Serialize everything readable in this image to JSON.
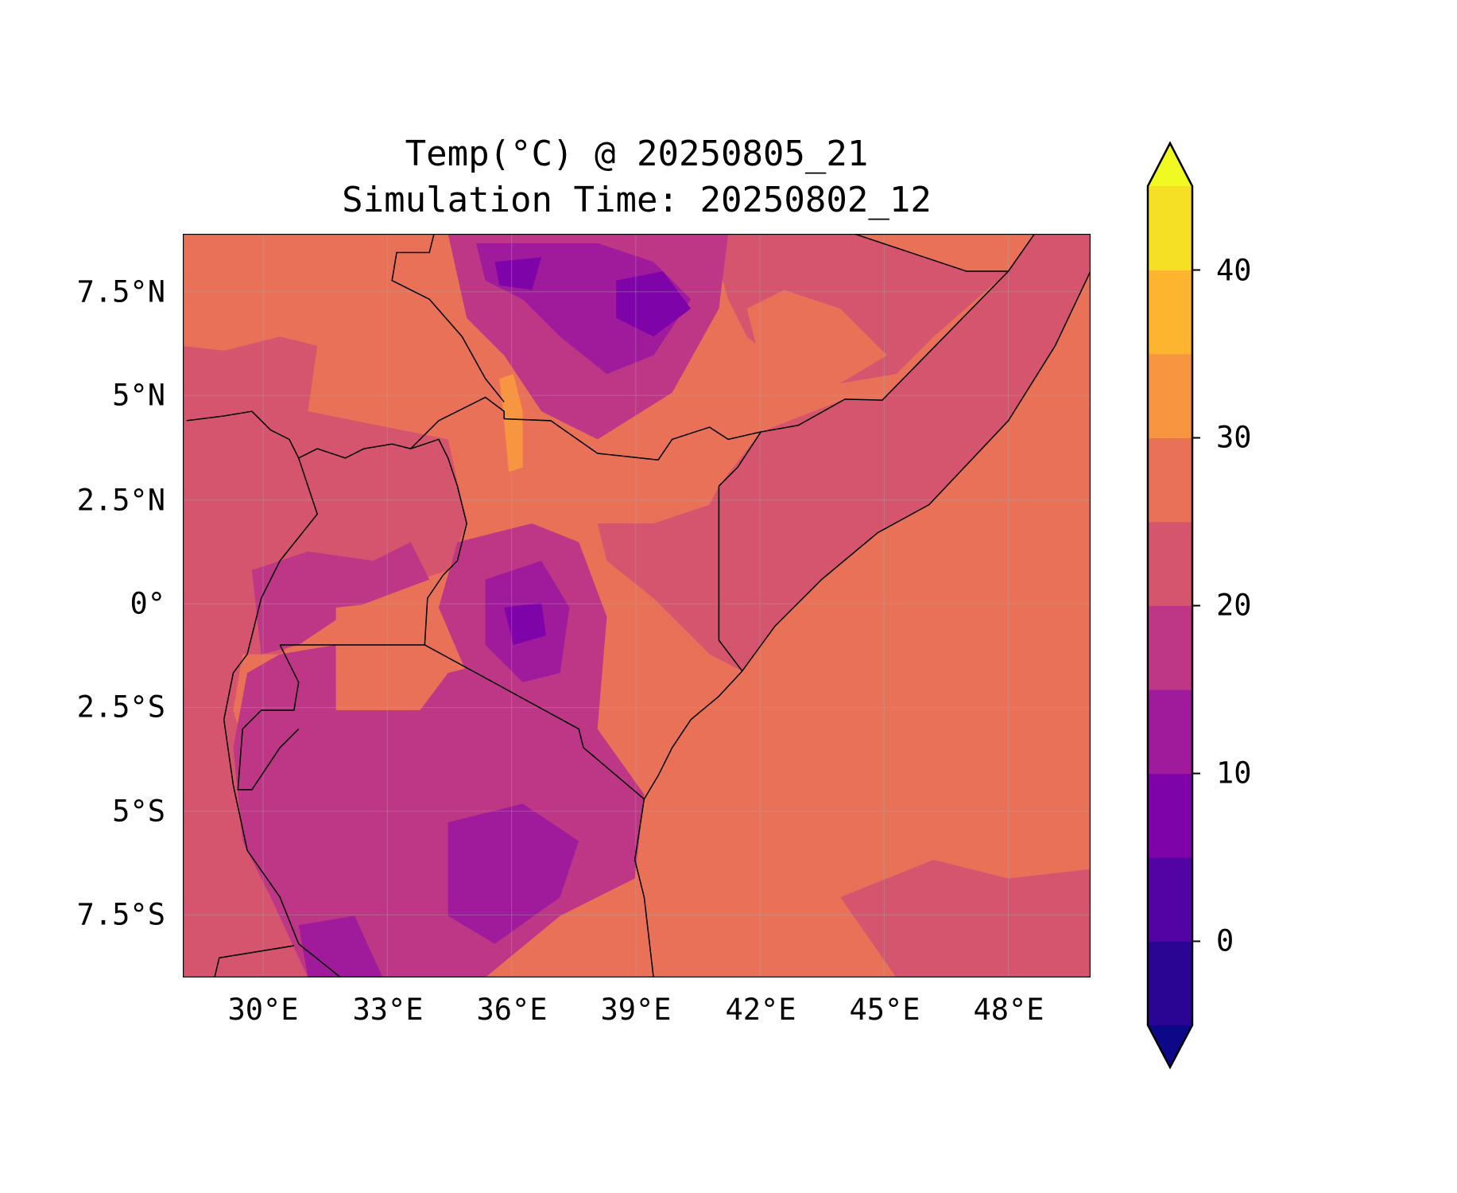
{
  "title": {
    "line1": "Temp(°C) @ 20250805_21",
    "line2": "Simulation Time: 20250802_12"
  },
  "axes": {
    "x_ticks": [
      "30°E",
      "33°E",
      "36°E",
      "39°E",
      "42°E",
      "45°E",
      "48°E"
    ],
    "y_ticks": [
      "7.5°N",
      "5°N",
      "2.5°N",
      "0°",
      "2.5°S",
      "5°S",
      "7.5°S"
    ]
  },
  "colorbar": {
    "tick_labels": [
      "0",
      "10",
      "20",
      "30",
      "40"
    ],
    "levels": [
      -5,
      0,
      5,
      10,
      15,
      20,
      25,
      30,
      35,
      40,
      45
    ],
    "colors": [
      "#2a0593",
      "#5302a3",
      "#7e03a8",
      "#a01a9c",
      "#bd3786",
      "#d5546e",
      "#e97158",
      "#f89540",
      "#fdb42f",
      "#f5e026"
    ],
    "under_color": "#0d0887",
    "over_color": "#f0f921",
    "extend": "both"
  },
  "chart_data": {
    "type": "heatmap",
    "title": "Temp(°C) @ 20250805_21 / Simulation Time: 20250802_12",
    "variable": "Temperature (°C)",
    "xlim": [
      28,
      50
    ],
    "ylim": [
      -9,
      9
    ],
    "x_ticks": [
      30,
      33,
      36,
      39,
      42,
      45,
      48
    ],
    "y_ticks": [
      7.5,
      5,
      2.5,
      0,
      -2.5,
      -5,
      -7.5
    ],
    "grid": true,
    "colorbar_placement": "right",
    "dominant_ranges": {
      "indian_ocean": "25-30",
      "somalia_inland": "20-25",
      "ethiopian_highlands": "5-20",
      "tanzania_interior": "10-20",
      "south_sudan": "25-30"
    }
  }
}
